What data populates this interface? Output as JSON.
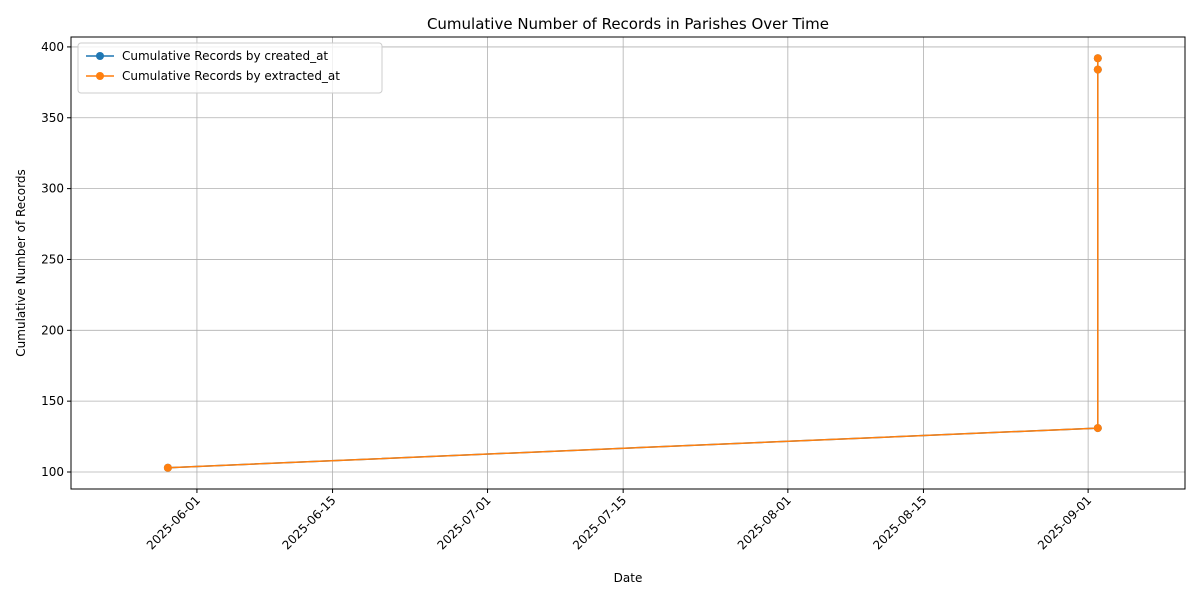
{
  "chart_data": {
    "type": "line",
    "title": "Cumulative Number of Records in Parishes Over Time",
    "xlabel": "Date",
    "ylabel": "Cumulative Number of Records",
    "xlim": [
      "2025-05-19",
      "2025-09-11"
    ],
    "ylim": [
      88,
      407
    ],
    "x_ticks": [
      "2025-06-01",
      "2025-06-15",
      "2025-07-01",
      "2025-07-15",
      "2025-08-01",
      "2025-08-15",
      "2025-09-01"
    ],
    "y_ticks": [
      100,
      150,
      200,
      250,
      300,
      350,
      400
    ],
    "grid": true,
    "legend_position": "top-left",
    "series": [
      {
        "name": "Cumulative Records by created_at",
        "color": "#1f77b4",
        "points": [
          {
            "x": "2025-05-29",
            "y": 103
          },
          {
            "x": "2025-09-02",
            "y": 131
          },
          {
            "x": "2025-09-02",
            "y": 384
          },
          {
            "x": "2025-09-02",
            "y": 392
          }
        ]
      },
      {
        "name": "Cumulative Records by extracted_at",
        "color": "#ff7f0e",
        "points": [
          {
            "x": "2025-05-29",
            "y": 103
          },
          {
            "x": "2025-09-02",
            "y": 131
          },
          {
            "x": "2025-09-02",
            "y": 384
          },
          {
            "x": "2025-09-02",
            "y": 392
          }
        ]
      }
    ]
  }
}
